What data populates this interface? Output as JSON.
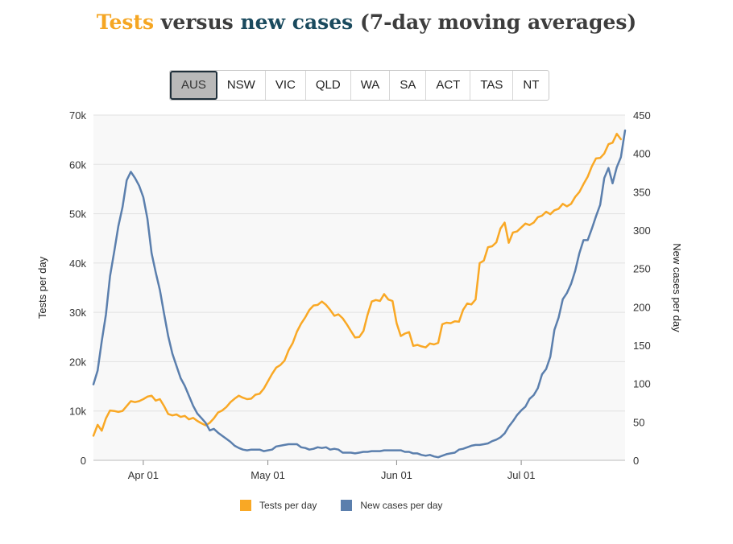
{
  "title": {
    "part1": "Tests",
    "part2": " versus ",
    "part3": "new cases",
    "part4": " (7-day moving averages)"
  },
  "colors": {
    "tests": "#f9a825",
    "cases": "#5b7fad",
    "title_tests": "#f5a623",
    "title_cases": "#1a4a5e",
    "grid": "#e2e2e2",
    "plot_bg": "#f8f8f8"
  },
  "tabs": [
    {
      "label": "AUS",
      "active": true
    },
    {
      "label": "NSW",
      "active": false
    },
    {
      "label": "VIC",
      "active": false
    },
    {
      "label": "QLD",
      "active": false
    },
    {
      "label": "WA",
      "active": false
    },
    {
      "label": "SA",
      "active": false
    },
    {
      "label": "ACT",
      "active": false
    },
    {
      "label": "TAS",
      "active": false
    },
    {
      "label": "NT",
      "active": false
    }
  ],
  "chart_data": {
    "type": "line",
    "ylabel_left": "Tests per day",
    "ylabel_right": "New cases per day",
    "ylim_left": [
      0,
      70000
    ],
    "ylim_right": [
      0,
      450
    ],
    "left_ticks": [
      "0",
      "10k",
      "20k",
      "30k",
      "40k",
      "50k",
      "60k",
      "70k"
    ],
    "right_ticks": [
      "0",
      "50",
      "100",
      "150",
      "200",
      "250",
      "300",
      "350",
      "400",
      "450"
    ],
    "x_ticks": [
      {
        "label": "Apr 01",
        "date": "2020-04-01"
      },
      {
        "label": "May 01",
        "date": "2020-05-01"
      },
      {
        "label": "Jun 01",
        "date": "2020-06-01"
      },
      {
        "label": "Jul 01",
        "date": "2020-07-01"
      }
    ],
    "x_range": [
      "2020-03-20",
      "2020-07-26"
    ],
    "grid": true,
    "legend_position": "bottom",
    "series": [
      {
        "name": "Tests per day",
        "axis": "left",
        "points": [
          [
            "2020-03-20",
            5000
          ],
          [
            "2020-03-21",
            7200
          ],
          [
            "2020-03-22",
            6000
          ],
          [
            "2020-03-23",
            8500
          ],
          [
            "2020-03-24",
            10100
          ],
          [
            "2020-03-25",
            10000
          ],
          [
            "2020-03-26",
            9800
          ],
          [
            "2020-03-27",
            10000
          ],
          [
            "2020-03-28",
            11000
          ],
          [
            "2020-03-29",
            12000
          ],
          [
            "2020-03-30",
            11800
          ],
          [
            "2020-03-31",
            12000
          ],
          [
            "2020-04-01",
            12400
          ],
          [
            "2020-04-02",
            12900
          ],
          [
            "2020-04-03",
            13100
          ],
          [
            "2020-04-04",
            12100
          ],
          [
            "2020-04-05",
            12400
          ],
          [
            "2020-04-06",
            11000
          ],
          [
            "2020-04-07",
            9400
          ],
          [
            "2020-04-08",
            9100
          ],
          [
            "2020-04-09",
            9300
          ],
          [
            "2020-04-10",
            8800
          ],
          [
            "2020-04-11",
            9000
          ],
          [
            "2020-04-12",
            8300
          ],
          [
            "2020-04-13",
            8600
          ],
          [
            "2020-04-14",
            8000
          ],
          [
            "2020-04-15",
            7500
          ],
          [
            "2020-04-16",
            7100
          ],
          [
            "2020-04-17",
            7600
          ],
          [
            "2020-04-18",
            8500
          ],
          [
            "2020-04-19",
            9700
          ],
          [
            "2020-04-20",
            10100
          ],
          [
            "2020-04-21",
            10800
          ],
          [
            "2020-04-22",
            11800
          ],
          [
            "2020-04-23",
            12500
          ],
          [
            "2020-04-24",
            13100
          ],
          [
            "2020-04-25",
            12700
          ],
          [
            "2020-04-26",
            12400
          ],
          [
            "2020-04-27",
            12500
          ],
          [
            "2020-04-28",
            13300
          ],
          [
            "2020-04-29",
            13500
          ],
          [
            "2020-04-30",
            14500
          ],
          [
            "2020-05-01",
            16000
          ],
          [
            "2020-05-02",
            17500
          ],
          [
            "2020-05-03",
            18800
          ],
          [
            "2020-05-04",
            19300
          ],
          [
            "2020-05-05",
            20200
          ],
          [
            "2020-05-06",
            22300
          ],
          [
            "2020-05-07",
            23800
          ],
          [
            "2020-05-08",
            26100
          ],
          [
            "2020-05-09",
            27700
          ],
          [
            "2020-05-10",
            29000
          ],
          [
            "2020-05-11",
            30500
          ],
          [
            "2020-05-12",
            31400
          ],
          [
            "2020-05-13",
            31500
          ],
          [
            "2020-05-14",
            32200
          ],
          [
            "2020-05-15",
            31500
          ],
          [
            "2020-05-16",
            30500
          ],
          [
            "2020-05-17",
            29300
          ],
          [
            "2020-05-18",
            29600
          ],
          [
            "2020-05-19",
            28800
          ],
          [
            "2020-05-20",
            27600
          ],
          [
            "2020-05-21",
            26200
          ],
          [
            "2020-05-22",
            24900
          ],
          [
            "2020-05-23",
            25000
          ],
          [
            "2020-05-24",
            26200
          ],
          [
            "2020-05-25",
            29500
          ],
          [
            "2020-05-26",
            32200
          ],
          [
            "2020-05-27",
            32500
          ],
          [
            "2020-05-28",
            32300
          ],
          [
            "2020-05-29",
            33700
          ],
          [
            "2020-05-30",
            32600
          ],
          [
            "2020-05-31",
            32300
          ],
          [
            "2020-06-01",
            27800
          ],
          [
            "2020-06-02",
            25200
          ],
          [
            "2020-06-03",
            25700
          ],
          [
            "2020-06-04",
            26000
          ],
          [
            "2020-06-05",
            23200
          ],
          [
            "2020-06-06",
            23400
          ],
          [
            "2020-06-07",
            23100
          ],
          [
            "2020-06-08",
            22900
          ],
          [
            "2020-06-09",
            23700
          ],
          [
            "2020-06-10",
            23500
          ],
          [
            "2020-06-11",
            23800
          ],
          [
            "2020-06-12",
            27600
          ],
          [
            "2020-06-13",
            27900
          ],
          [
            "2020-06-14",
            27800
          ],
          [
            "2020-06-15",
            28200
          ],
          [
            "2020-06-16",
            28100
          ],
          [
            "2020-06-17",
            30500
          ],
          [
            "2020-06-18",
            31800
          ],
          [
            "2020-06-19",
            31600
          ],
          [
            "2020-06-20",
            32600
          ],
          [
            "2020-06-21",
            40000
          ],
          [
            "2020-06-22",
            40500
          ],
          [
            "2020-06-23",
            43200
          ],
          [
            "2020-06-24",
            43400
          ],
          [
            "2020-06-25",
            44200
          ],
          [
            "2020-06-26",
            47000
          ],
          [
            "2020-06-27",
            48200
          ],
          [
            "2020-06-28",
            44100
          ],
          [
            "2020-06-29",
            46200
          ],
          [
            "2020-06-30",
            46400
          ],
          [
            "2020-07-01",
            47200
          ],
          [
            "2020-07-02",
            48000
          ],
          [
            "2020-07-03",
            47700
          ],
          [
            "2020-07-04",
            48200
          ],
          [
            "2020-07-05",
            49300
          ],
          [
            "2020-07-06",
            49600
          ],
          [
            "2020-07-07",
            50400
          ],
          [
            "2020-07-08",
            49900
          ],
          [
            "2020-07-09",
            50700
          ],
          [
            "2020-07-10",
            51000
          ],
          [
            "2020-07-11",
            52000
          ],
          [
            "2020-07-12",
            51500
          ],
          [
            "2020-07-13",
            52000
          ],
          [
            "2020-07-14",
            53400
          ],
          [
            "2020-07-15",
            54400
          ],
          [
            "2020-07-16",
            56000
          ],
          [
            "2020-07-17",
            57500
          ],
          [
            "2020-07-18",
            59600
          ],
          [
            "2020-07-19",
            61200
          ],
          [
            "2020-07-20",
            61300
          ],
          [
            "2020-07-21",
            62200
          ],
          [
            "2020-07-22",
            64100
          ],
          [
            "2020-07-23",
            64400
          ],
          [
            "2020-07-24",
            66200
          ],
          [
            "2020-07-25",
            65100
          ]
        ]
      },
      {
        "name": "New cases per day",
        "axis": "right",
        "points": [
          [
            "2020-03-20",
            99
          ],
          [
            "2020-03-21",
            117
          ],
          [
            "2020-03-22",
            155
          ],
          [
            "2020-03-23",
            190
          ],
          [
            "2020-03-24",
            240
          ],
          [
            "2020-03-25",
            272
          ],
          [
            "2020-03-26",
            305
          ],
          [
            "2020-03-27",
            330
          ],
          [
            "2020-03-28",
            365
          ],
          [
            "2020-03-29",
            376
          ],
          [
            "2020-03-30",
            368
          ],
          [
            "2020-03-31",
            358
          ],
          [
            "2020-04-01",
            343
          ],
          [
            "2020-04-02",
            315
          ],
          [
            "2020-04-03",
            270
          ],
          [
            "2020-04-04",
            245
          ],
          [
            "2020-04-05",
            222
          ],
          [
            "2020-04-06",
            191
          ],
          [
            "2020-04-07",
            162
          ],
          [
            "2020-04-08",
            139
          ],
          [
            "2020-04-09",
            123
          ],
          [
            "2020-04-10",
            107
          ],
          [
            "2020-04-11",
            97
          ],
          [
            "2020-04-12",
            84
          ],
          [
            "2020-04-13",
            71
          ],
          [
            "2020-04-14",
            61
          ],
          [
            "2020-04-15",
            55
          ],
          [
            "2020-04-16",
            49
          ],
          [
            "2020-04-17",
            39
          ],
          [
            "2020-04-18",
            41
          ],
          [
            "2020-04-19",
            36
          ],
          [
            "2020-04-20",
            32
          ],
          [
            "2020-04-21",
            28
          ],
          [
            "2020-04-22",
            24
          ],
          [
            "2020-04-23",
            19
          ],
          [
            "2020-04-24",
            16
          ],
          [
            "2020-04-25",
            14
          ],
          [
            "2020-04-26",
            13
          ],
          [
            "2020-04-27",
            14
          ],
          [
            "2020-04-28",
            14
          ],
          [
            "2020-04-29",
            14
          ],
          [
            "2020-04-30",
            12
          ],
          [
            "2020-05-01",
            13
          ],
          [
            "2020-05-02",
            14
          ],
          [
            "2020-05-03",
            18
          ],
          [
            "2020-05-04",
            19
          ],
          [
            "2020-05-05",
            20
          ],
          [
            "2020-05-06",
            21
          ],
          [
            "2020-05-07",
            21
          ],
          [
            "2020-05-08",
            21
          ],
          [
            "2020-05-09",
            17
          ],
          [
            "2020-05-10",
            16
          ],
          [
            "2020-05-11",
            14
          ],
          [
            "2020-05-12",
            15
          ],
          [
            "2020-05-13",
            17
          ],
          [
            "2020-05-14",
            16
          ],
          [
            "2020-05-15",
            17
          ],
          [
            "2020-05-16",
            14
          ],
          [
            "2020-05-17",
            15
          ],
          [
            "2020-05-18",
            14
          ],
          [
            "2020-05-19",
            10
          ],
          [
            "2020-05-20",
            10
          ],
          [
            "2020-05-21",
            10
          ],
          [
            "2020-05-22",
            9
          ],
          [
            "2020-05-23",
            10
          ],
          [
            "2020-05-24",
            11
          ],
          [
            "2020-05-25",
            11
          ],
          [
            "2020-05-26",
            12
          ],
          [
            "2020-05-27",
            12
          ],
          [
            "2020-05-28",
            12
          ],
          [
            "2020-05-29",
            13
          ],
          [
            "2020-05-30",
            13
          ],
          [
            "2020-05-31",
            13
          ],
          [
            "2020-06-01",
            13
          ],
          [
            "2020-06-02",
            13
          ],
          [
            "2020-06-03",
            11
          ],
          [
            "2020-06-04",
            11
          ],
          [
            "2020-06-05",
            9
          ],
          [
            "2020-06-06",
            9
          ],
          [
            "2020-06-07",
            7
          ],
          [
            "2020-06-08",
            6
          ],
          [
            "2020-06-09",
            7
          ],
          [
            "2020-06-10",
            5
          ],
          [
            "2020-06-11",
            4
          ],
          [
            "2020-06-12",
            6
          ],
          [
            "2020-06-13",
            8
          ],
          [
            "2020-06-14",
            9
          ],
          [
            "2020-06-15",
            10
          ],
          [
            "2020-06-16",
            14
          ],
          [
            "2020-06-17",
            15
          ],
          [
            "2020-06-18",
            17
          ],
          [
            "2020-06-19",
            19
          ],
          [
            "2020-06-20",
            20
          ],
          [
            "2020-06-21",
            20
          ],
          [
            "2020-06-22",
            21
          ],
          [
            "2020-06-23",
            22
          ],
          [
            "2020-06-24",
            25
          ],
          [
            "2020-06-25",
            27
          ],
          [
            "2020-06-26",
            30
          ],
          [
            "2020-06-27",
            35
          ],
          [
            "2020-06-28",
            44
          ],
          [
            "2020-06-29",
            51
          ],
          [
            "2020-06-30",
            59
          ],
          [
            "2020-07-01",
            65
          ],
          [
            "2020-07-02",
            70
          ],
          [
            "2020-07-03",
            80
          ],
          [
            "2020-07-04",
            85
          ],
          [
            "2020-07-05",
            94
          ],
          [
            "2020-07-06",
            112
          ],
          [
            "2020-07-07",
            119
          ],
          [
            "2020-07-08",
            135
          ],
          [
            "2020-07-09",
            170
          ],
          [
            "2020-07-10",
            186
          ],
          [
            "2020-07-11",
            210
          ],
          [
            "2020-07-12",
            218
          ],
          [
            "2020-07-13",
            230
          ],
          [
            "2020-07-14",
            247
          ],
          [
            "2020-07-15",
            270
          ],
          [
            "2020-07-16",
            287
          ],
          [
            "2020-07-17",
            287
          ],
          [
            "2020-07-18",
            302
          ],
          [
            "2020-07-19",
            318
          ],
          [
            "2020-07-20",
            333
          ],
          [
            "2020-07-21",
            368
          ],
          [
            "2020-07-22",
            381
          ],
          [
            "2020-07-23",
            361
          ],
          [
            "2020-07-24",
            382
          ],
          [
            "2020-07-25",
            395
          ],
          [
            "2020-07-26",
            430
          ]
        ]
      }
    ]
  }
}
